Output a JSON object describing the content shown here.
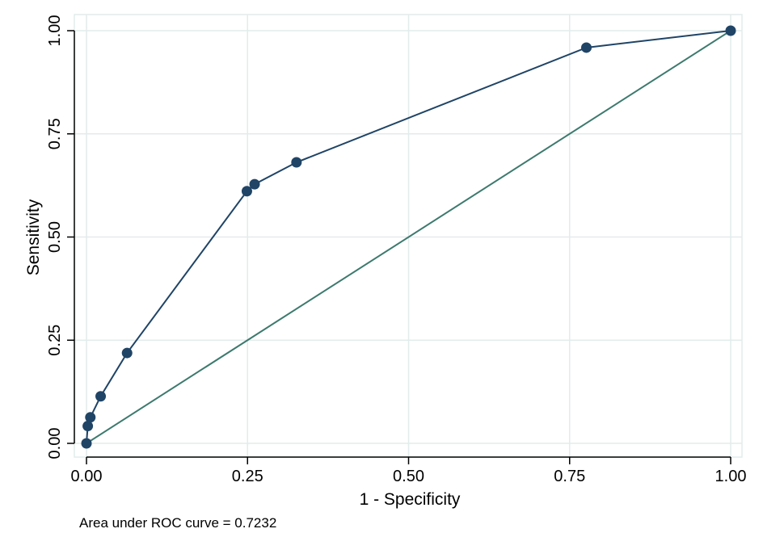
{
  "chart_data": {
    "type": "line",
    "title": "",
    "xlabel": "1 - Specificity",
    "ylabel": "Sensitivity",
    "xlim": [
      0,
      1
    ],
    "ylim": [
      0,
      1
    ],
    "x_ticks": [
      0,
      0.25,
      0.5,
      0.75,
      1
    ],
    "y_ticks": [
      0,
      0.25,
      0.5,
      0.75,
      1
    ],
    "x_tick_labels": [
      "0.00",
      "0.25",
      "0.50",
      "0.75",
      "1.00"
    ],
    "y_tick_labels": [
      "0.00",
      "0.25",
      "0.50",
      "0.75",
      "1.00"
    ],
    "grid": true,
    "note": "Area under ROC curve = 0.7232",
    "colors": {
      "roc": "#1f4466",
      "reference": "#3d7a6e",
      "grid": "#e3ebeb"
    },
    "series": [
      {
        "x": [
          0,
          0.002,
          0.006,
          0.022,
          0.063,
          0.249,
          0.261,
          0.326,
          0.776,
          1.0
        ],
        "y": [
          0,
          0.042,
          0.063,
          0.114,
          0.219,
          0.611,
          0.628,
          0.681,
          0.959,
          1.0
        ]
      }
    ],
    "reference_line": {
      "x": [
        0,
        1
      ],
      "y": [
        0,
        1
      ]
    }
  }
}
